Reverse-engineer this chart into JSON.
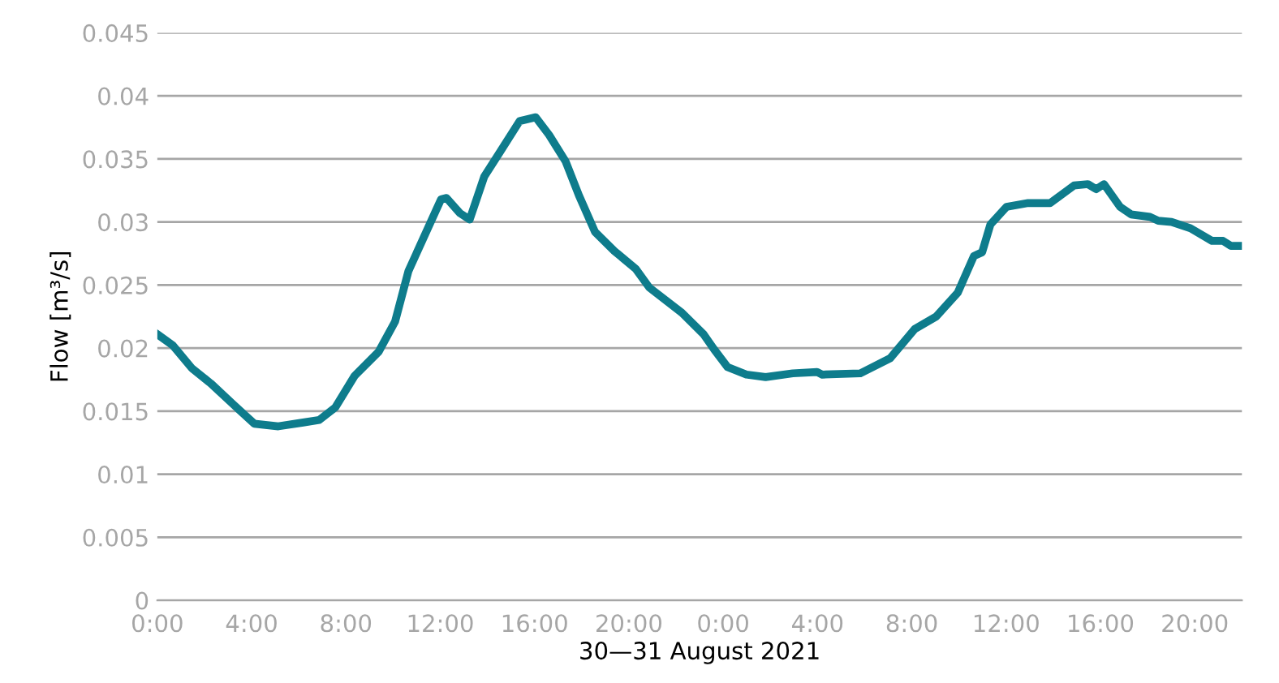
{
  "chart_data": {
    "type": "line",
    "xlabel": "30—31 August 2021",
    "ylabel": "Flow [m³/s]",
    "x": [
      "2021-08-30T00:00",
      "2021-08-30T00:40",
      "2021-08-30T01:28",
      "2021-08-30T02:16",
      "2021-08-30T03:11",
      "2021-08-30T04:07",
      "2021-08-30T05:08",
      "2021-08-30T06:11",
      "2021-08-30T06:52",
      "2021-08-30T07:33",
      "2021-08-30T08:22",
      "2021-08-30T09:23",
      "2021-08-30T10:05",
      "2021-08-30T10:39",
      "2021-08-30T11:27",
      "2021-08-30T12:02",
      "2021-08-30T12:16",
      "2021-08-30T12:50",
      "2021-08-30T13:15",
      "2021-08-30T13:52",
      "2021-08-30T14:33",
      "2021-08-30T15:22",
      "2021-08-30T16:03",
      "2021-08-30T16:37",
      "2021-08-30T17:19",
      "2021-08-30T17:53",
      "2021-08-30T18:34",
      "2021-08-30T19:23",
      "2021-08-30T20:17",
      "2021-08-30T20:52",
      "2021-08-30T22:15",
      "2021-08-30T23:10",
      "2021-08-30T23:37",
      "2021-08-31T00:11",
      "2021-08-31T00:59",
      "2021-08-31T01:48",
      "2021-08-31T02:57",
      "2021-08-31T03:59",
      "2021-08-31T04:12",
      "2021-08-31T05:49",
      "2021-08-31T07:05",
      "2021-08-31T08:07",
      "2021-08-31T09:02",
      "2021-08-31T09:57",
      "2021-08-31T10:38",
      "2021-08-31T10:59",
      "2021-08-31T11:20",
      "2021-08-31T12:01",
      "2021-08-31T12:56",
      "2021-08-31T13:52",
      "2021-08-31T14:53",
      "2021-08-31T15:28",
      "2021-08-31T15:49",
      "2021-08-31T16:09",
      "2021-08-31T16:50",
      "2021-08-31T17:18",
      "2021-08-31T18:06",
      "2021-08-31T18:27",
      "2021-08-31T19:01",
      "2021-08-31T19:49",
      "2021-08-31T20:44",
      "2021-08-31T21:12",
      "2021-08-31T21:32",
      "2021-08-31T22:00"
    ],
    "series": [
      {
        "color": "#0e7c8c",
        "values": [
          0.0211,
          0.0202,
          0.0184,
          0.0172,
          0.0156,
          0.014,
          0.0138,
          0.0141,
          0.0143,
          0.0153,
          0.0178,
          0.0197,
          0.0221,
          0.0261,
          0.0294,
          0.0318,
          0.0319,
          0.0307,
          0.0302,
          0.0336,
          0.0356,
          0.038,
          0.0383,
          0.0369,
          0.0348,
          0.0321,
          0.0292,
          0.0277,
          0.0263,
          0.0248,
          0.0228,
          0.0211,
          0.0199,
          0.0185,
          0.0179,
          0.0177,
          0.018,
          0.0181,
          0.0179,
          0.018,
          0.0192,
          0.0215,
          0.0225,
          0.0244,
          0.0273,
          0.0276,
          0.0298,
          0.0312,
          0.0315,
          0.0315,
          0.0329,
          0.033,
          0.0326,
          0.033,
          0.0312,
          0.0306,
          0.0304,
          0.0301,
          0.03,
          0.0295,
          0.0285,
          0.0285,
          0.0281,
          0.0281
        ]
      }
    ],
    "xlim": [
      "2021-08-30T00:00",
      "2021-08-31T22:00"
    ],
    "xticks": [
      {
        "value": "2021-08-30T00:00",
        "label": "0:00"
      },
      {
        "value": "2021-08-30T04:00",
        "label": "4:00"
      },
      {
        "value": "2021-08-30T08:00",
        "label": "8:00"
      },
      {
        "value": "2021-08-30T12:00",
        "label": "12:00"
      },
      {
        "value": "2021-08-30T16:00",
        "label": "16:00"
      },
      {
        "value": "2021-08-30T20:00",
        "label": "20:00"
      },
      {
        "value": "2021-08-31T00:00",
        "label": "0:00"
      },
      {
        "value": "2021-08-31T04:00",
        "label": "4:00"
      },
      {
        "value": "2021-08-31T08:00",
        "label": "8:00"
      },
      {
        "value": "2021-08-31T12:00",
        "label": "12:00"
      },
      {
        "value": "2021-08-31T16:00",
        "label": "16:00"
      },
      {
        "value": "2021-08-31T20:00",
        "label": "20:00"
      }
    ],
    "ylim": [
      0,
      0.045
    ],
    "yticks": [
      0,
      0.005,
      0.01,
      0.015,
      0.02,
      0.025,
      0.03,
      0.035,
      0.04,
      0.045
    ],
    "grid": "y",
    "marker": "none",
    "line_style": "solid"
  }
}
